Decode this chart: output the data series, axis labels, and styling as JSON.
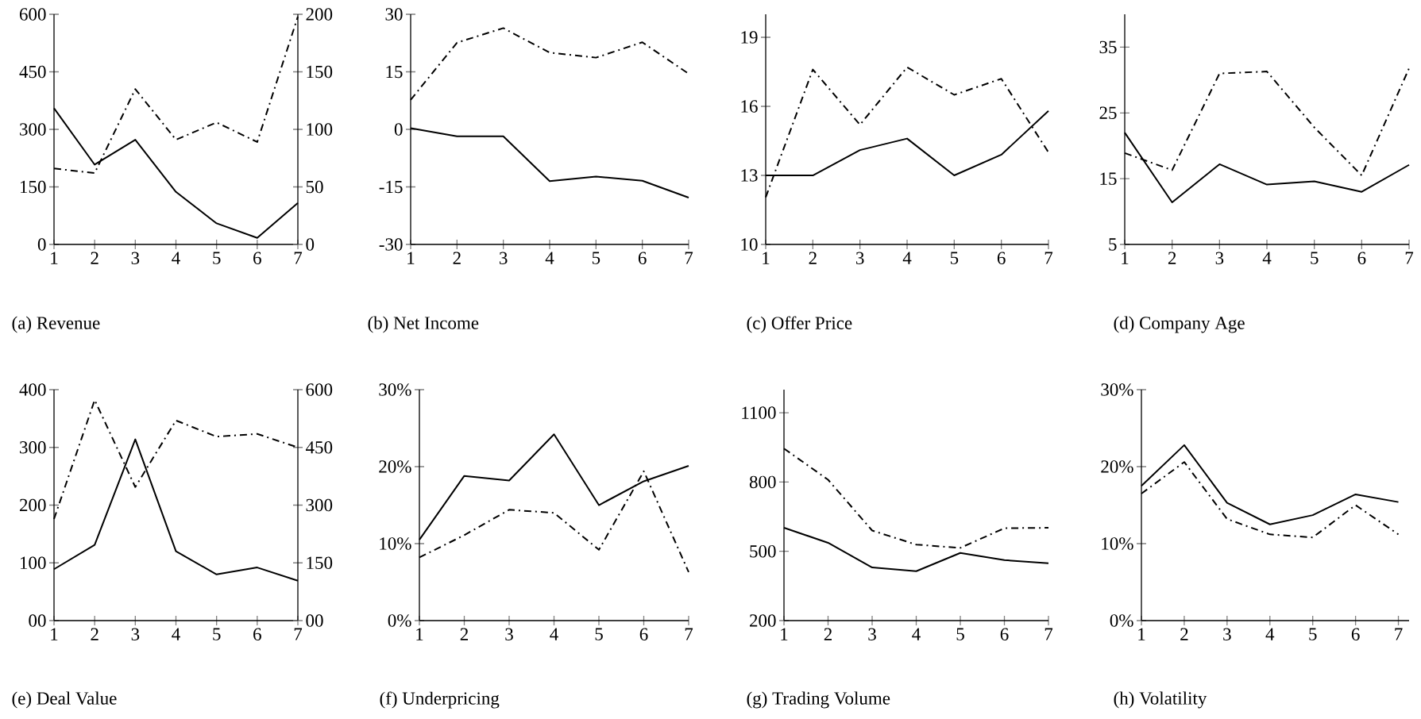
{
  "chart_data": [
    {
      "type": "line",
      "title": "(a) Revenue",
      "x": [
        1,
        2,
        3,
        4,
        5,
        6,
        7
      ],
      "xlim": [
        1,
        7
      ],
      "xticks": [
        1,
        2,
        3,
        4,
        5,
        6,
        7
      ],
      "ylim": [
        0,
        600
      ],
      "yticks": [
        0,
        150,
        300,
        450,
        600
      ],
      "y2lim": [
        0,
        200
      ],
      "y2ticks": [
        0,
        50,
        100,
        150,
        200
      ],
      "series": [
        {
          "color": "#000000",
          "line_style": "solid",
          "values": [
            355,
            208,
            273,
            137,
            55,
            17,
            108
          ]
        },
        {
          "color": "#000000",
          "line_style": "dashdot",
          "axis": "y2",
          "values": [
            66,
            62,
            135,
            91,
            106,
            89,
            198
          ]
        }
      ]
    },
    {
      "type": "line",
      "title": "(b) Net Income",
      "x": [
        1,
        2,
        3,
        4,
        5,
        6,
        7
      ],
      "xlim": [
        1,
        7
      ],
      "xticks": [
        1,
        2,
        3,
        4,
        5,
        6,
        7
      ],
      "ylim": [
        -30,
        30
      ],
      "yticks": [
        -30,
        -15,
        0,
        15,
        30
      ],
      "series": [
        {
          "color": "#000000",
          "line_style": "solid",
          "values": [
            0.3,
            -1.8,
            -1.8,
            -13.5,
            -12.3,
            -13.4,
            -17.8
          ]
        },
        {
          "color": "#000000",
          "line_style": "dashdot",
          "values": [
            7.7,
            22.6,
            26.4,
            20,
            18.7,
            22.7,
            14.5
          ]
        }
      ]
    },
    {
      "type": "line",
      "title": "(c) Offer Price",
      "x": [
        1,
        2,
        3,
        4,
        5,
        6,
        7
      ],
      "xlim": [
        1,
        7
      ],
      "xticks": [
        1,
        2,
        3,
        4,
        5,
        6,
        7
      ],
      "ylim": [
        10,
        20
      ],
      "yticks": [
        10,
        13,
        16,
        19
      ],
      "series": [
        {
          "color": "#000000",
          "line_style": "solid",
          "values": [
            13,
            13,
            14.1,
            14.6,
            13,
            13.9,
            15.8
          ]
        },
        {
          "color": "#000000",
          "line_style": "dashdot",
          "values": [
            12.05,
            17.6,
            15.2,
            17.7,
            16.5,
            17.2,
            14.0
          ]
        }
      ]
    },
    {
      "type": "line",
      "title": "(d) Company Age",
      "x": [
        1,
        2,
        3,
        4,
        5,
        6,
        7
      ],
      "xlim": [
        1,
        7
      ],
      "xticks": [
        1,
        2,
        3,
        4,
        5,
        6,
        7
      ],
      "ylim": [
        5,
        40
      ],
      "yticks": [
        5,
        15,
        25,
        35
      ],
      "series": [
        {
          "color": "#000000",
          "line_style": "solid",
          "values": [
            22,
            11.4,
            17.2,
            14.1,
            14.6,
            13,
            17.1
          ]
        },
        {
          "color": "#000000",
          "line_style": "dashdot",
          "values": [
            18.9,
            16.3,
            31,
            31.3,
            22.8,
            15.5,
            31.8
          ]
        }
      ]
    },
    {
      "type": "line",
      "title": "(e) Deal Value",
      "x": [
        1,
        2,
        3,
        4,
        5,
        6,
        7
      ],
      "xlim": [
        1,
        7
      ],
      "xticks": [
        1,
        2,
        3,
        4,
        5,
        6,
        7
      ],
      "ylim": [
        0,
        400
      ],
      "yticks": [
        {
          "value": 0,
          "label": "00"
        },
        100,
        200,
        300,
        400
      ],
      "y2lim": [
        0,
        600
      ],
      "y2ticks": [
        {
          "value": 0,
          "label": "00"
        },
        150,
        300,
        450,
        600
      ],
      "series": [
        {
          "color": "#000000",
          "line_style": "solid",
          "values": [
            89,
            131,
            314,
            120,
            80,
            92,
            69
          ]
        },
        {
          "color": "#000000",
          "line_style": "dashdot",
          "axis": "y2",
          "values": [
            264,
            573,
            347,
            520,
            478,
            485,
            450
          ]
        }
      ]
    },
    {
      "type": "line",
      "title": "(f) Underpricing",
      "x": [
        1,
        2,
        3,
        4,
        5,
        6,
        7
      ],
      "xlim": [
        1,
        7
      ],
      "xticks": [
        1,
        2,
        3,
        4,
        5,
        6,
        7
      ],
      "ylim": [
        0,
        30
      ],
      "yticks": [
        {
          "value": 0,
          "label": "0%"
        },
        {
          "value": 10,
          "label": "10%"
        },
        {
          "value": 20,
          "label": "20%"
        },
        {
          "value": 30,
          "label": "30%"
        }
      ],
      "series": [
        {
          "color": "#000000",
          "line_style": "solid",
          "values": [
            10.5,
            18.8,
            18.2,
            24.2,
            15,
            18.1,
            20.1
          ]
        },
        {
          "color": "#000000",
          "line_style": "dashdot",
          "values": [
            8.2,
            11.1,
            14.4,
            14.0,
            9.2,
            19.4,
            6.3
          ]
        }
      ]
    },
    {
      "type": "line",
      "title": "(g) Trading Volume",
      "x": [
        1,
        2,
        3,
        4,
        5,
        6,
        7
      ],
      "xlim": [
        1,
        7
      ],
      "xticks": [
        1,
        2,
        3,
        4,
        5,
        6,
        7
      ],
      "ylim": [
        200,
        1200
      ],
      "yticks": [
        200,
        500,
        800,
        1100
      ],
      "series": [
        {
          "color": "#000000",
          "line_style": "solid",
          "values": [
            602,
            537,
            430,
            414,
            493,
            462,
            448
          ]
        },
        {
          "color": "#000000",
          "line_style": "dashdot",
          "values": [
            945,
            810,
            590,
            529,
            515,
            600,
            602
          ]
        }
      ]
    },
    {
      "type": "line",
      "title": "(h) Volatility",
      "x": [
        1,
        2,
        3,
        4,
        5,
        6,
        7
      ],
      "xlim": [
        1,
        7.25
      ],
      "xticks": [
        1,
        2,
        3,
        4,
        5,
        6,
        7
      ],
      "ylim": [
        0,
        30
      ],
      "yticks": [
        {
          "value": 0,
          "label": "0%"
        },
        {
          "value": 10,
          "label": "10%"
        },
        {
          "value": 20,
          "label": "20%"
        },
        {
          "value": 30,
          "label": "30%"
        }
      ],
      "series": [
        {
          "color": "#000000",
          "line_style": "solid",
          "values": [
            17.5,
            22.8,
            15.3,
            12.5,
            13.7,
            16.4,
            15.4
          ]
        },
        {
          "color": "#000000",
          "line_style": "dashdot",
          "values": [
            16.5,
            20.6,
            13.2,
            11.2,
            10.8,
            15,
            11.2
          ]
        }
      ]
    }
  ]
}
